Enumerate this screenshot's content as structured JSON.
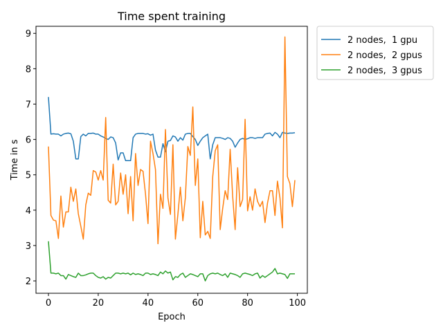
{
  "chart_data": {
    "type": "line",
    "title": "Time spent training",
    "xlabel": "Epoch",
    "ylabel": "Time in s",
    "xlim": [
      -5,
      104
    ],
    "ylim": [
      1.65,
      9.2
    ],
    "xticks": [
      0,
      20,
      40,
      60,
      80,
      100
    ],
    "yticks": [
      2,
      3,
      4,
      5,
      6,
      7,
      8,
      9
    ],
    "grid": false,
    "legend_position": "outside-top-right",
    "x": [
      0,
      1,
      2,
      3,
      4,
      5,
      6,
      7,
      8,
      9,
      10,
      11,
      12,
      13,
      14,
      15,
      16,
      17,
      18,
      19,
      20,
      21,
      22,
      23,
      24,
      25,
      26,
      27,
      28,
      29,
      30,
      31,
      32,
      33,
      34,
      35,
      36,
      37,
      38,
      39,
      40,
      41,
      42,
      43,
      44,
      45,
      46,
      47,
      48,
      49,
      50,
      51,
      52,
      53,
      54,
      55,
      56,
      57,
      58,
      59,
      60,
      61,
      62,
      63,
      64,
      65,
      66,
      67,
      68,
      69,
      70,
      71,
      72,
      73,
      74,
      75,
      76,
      77,
      78,
      79,
      80,
      81,
      82,
      83,
      84,
      85,
      86,
      87,
      88,
      89,
      90,
      91,
      92,
      93,
      94,
      95,
      96,
      97,
      98,
      99
    ],
    "series": [
      {
        "name": "2 nodes,  1 gpu",
        "color": "#1f77b4",
        "values": [
          7.2,
          6.15,
          6.16,
          6.15,
          6.15,
          6.1,
          6.15,
          6.17,
          6.18,
          6.16,
          5.95,
          5.45,
          5.45,
          6.08,
          6.15,
          6.1,
          6.17,
          6.17,
          6.18,
          6.15,
          6.15,
          6.1,
          6.07,
          6.03,
          6.0,
          6.07,
          6.05,
          5.9,
          5.42,
          5.62,
          5.62,
          5.4,
          5.4,
          5.4,
          6.05,
          6.15,
          6.17,
          6.17,
          6.17,
          6.15,
          6.16,
          6.12,
          6.15,
          5.7,
          5.5,
          5.5,
          5.88,
          5.65,
          5.95,
          5.97,
          6.1,
          6.07,
          5.95,
          6.05,
          5.98,
          6.15,
          6.17,
          6.17,
          6.08,
          6.0,
          5.83,
          5.95,
          6.05,
          6.1,
          6.15,
          5.45,
          5.85,
          6.05,
          6.05,
          6.05,
          6.03,
          6.0,
          6.05,
          6.03,
          5.95,
          5.78,
          5.9,
          6.0,
          6.03,
          6.0,
          6.02,
          6.05,
          6.05,
          6.03,
          6.05,
          6.05,
          6.05,
          6.15,
          6.17,
          6.18,
          6.1,
          6.2,
          6.15,
          6.05,
          6.2,
          6.18,
          6.17,
          6.18,
          6.18,
          6.19
        ]
      },
      {
        "name": "2 nodes,  2 gpus",
        "color": "#ff7f0e",
        "values": [
          5.8,
          3.85,
          3.72,
          3.7,
          3.2,
          4.4,
          3.52,
          3.95,
          3.95,
          4.65,
          4.25,
          4.6,
          3.9,
          3.55,
          3.18,
          4.15,
          4.48,
          4.42,
          5.12,
          5.08,
          4.85,
          5.12,
          4.85,
          6.62,
          4.28,
          4.2,
          5.3,
          4.15,
          4.25,
          5.05,
          4.45,
          5.0,
          3.9,
          4.95,
          3.7,
          5.6,
          4.7,
          5.15,
          5.1,
          4.45,
          3.62,
          5.95,
          5.6,
          5.15,
          3.05,
          4.45,
          4.05,
          6.28,
          4.35,
          3.88,
          5.85,
          3.18,
          3.88,
          4.65,
          3.7,
          4.35,
          5.8,
          5.55,
          6.92,
          4.7,
          5.45,
          3.22,
          4.25,
          3.3,
          3.4,
          3.2,
          4.95,
          5.68,
          5.85,
          3.45,
          4.05,
          4.55,
          4.3,
          5.72,
          4.4,
          3.45,
          5.2,
          4.1,
          4.3,
          6.57,
          3.98,
          4.38,
          4.0,
          4.6,
          4.25,
          4.1,
          4.25,
          3.65,
          4.2,
          4.55,
          4.55,
          3.85,
          4.82,
          4.35,
          3.5,
          8.9,
          4.95,
          4.75,
          4.1,
          4.85
        ]
      },
      {
        "name": "2 nodes,  3 gpus",
        "color": "#2ca02c",
        "values": [
          3.12,
          2.22,
          2.22,
          2.2,
          2.22,
          2.15,
          2.15,
          2.05,
          2.18,
          2.15,
          2.12,
          2.1,
          2.22,
          2.15,
          2.15,
          2.17,
          2.2,
          2.22,
          2.22,
          2.15,
          2.1,
          2.08,
          2.12,
          2.05,
          2.1,
          2.08,
          2.15,
          2.22,
          2.22,
          2.2,
          2.22,
          2.2,
          2.22,
          2.17,
          2.22,
          2.18,
          2.2,
          2.18,
          2.15,
          2.22,
          2.22,
          2.18,
          2.2,
          2.18,
          2.15,
          2.25,
          2.2,
          2.28,
          2.22,
          2.25,
          2.03,
          2.12,
          2.1,
          2.18,
          2.22,
          2.1,
          2.15,
          2.2,
          2.18,
          2.15,
          2.12,
          2.2,
          2.2,
          2.0,
          2.15,
          2.2,
          2.22,
          2.2,
          2.22,
          2.18,
          2.15,
          2.2,
          2.1,
          2.22,
          2.2,
          2.18,
          2.15,
          2.1,
          2.2,
          2.22,
          2.2,
          2.18,
          2.15,
          2.2,
          2.22,
          2.08,
          2.15,
          2.1,
          2.15,
          2.2,
          2.25,
          2.35,
          2.2,
          2.22,
          2.2,
          2.18,
          2.07,
          2.2,
          2.2,
          2.2
        ]
      }
    ]
  }
}
